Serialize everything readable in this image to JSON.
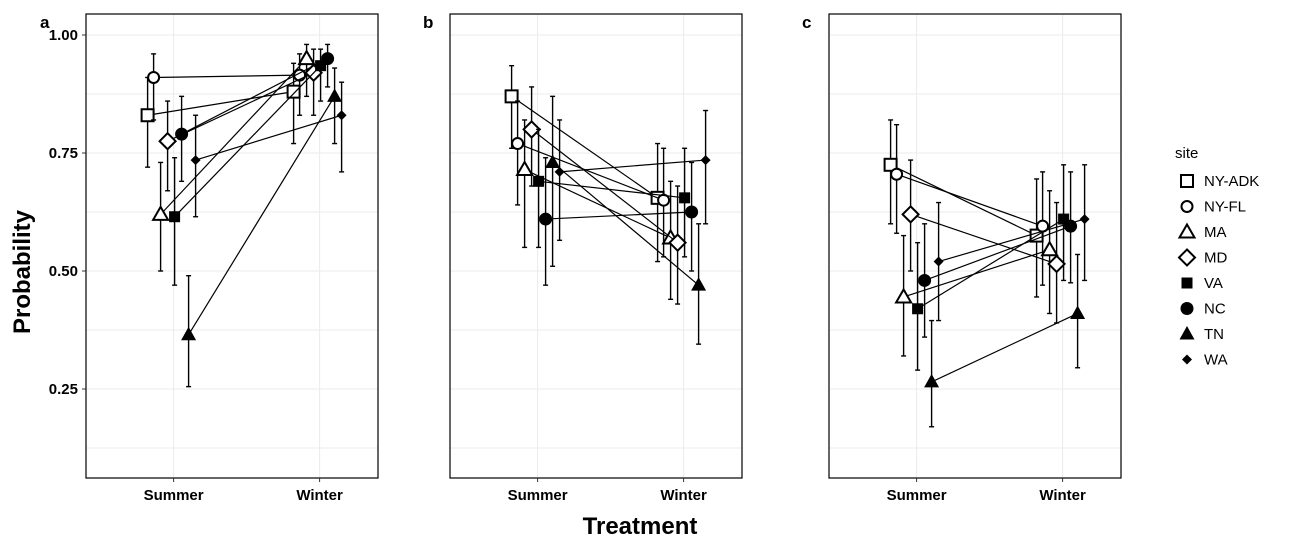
{
  "chart_data": {
    "type": "scatter",
    "xlabel": "Treatment",
    "ylabel": "Probability",
    "categories": [
      "Summer",
      "Winter"
    ],
    "ylim": [
      0.1,
      1.04
    ],
    "yticks": [
      {
        "value": 0.25,
        "label": "0.25"
      },
      {
        "value": 0.5,
        "label": "0.50"
      },
      {
        "value": 0.75,
        "label": "0.75"
      },
      {
        "value": 1.0,
        "label": "1.00"
      }
    ],
    "grid": true,
    "legend": {
      "title": "site",
      "position": "right",
      "entries": [
        {
          "site": "NY-ADK",
          "label": "NY-ADK",
          "marker": "square-open"
        },
        {
          "site": "NY-FL",
          "label": "NY-FL",
          "marker": "circle-open"
        },
        {
          "site": "MA",
          "label": "MA",
          "marker": "triangle-open"
        },
        {
          "site": "MD",
          "label": "MD",
          "marker": "diamond-open"
        },
        {
          "site": "VA",
          "label": "VA",
          "marker": "square-filled"
        },
        {
          "site": "NC",
          "label": "NC",
          "marker": "circle-filled"
        },
        {
          "site": "TN",
          "label": "TN",
          "marker": "triangle-filled"
        },
        {
          "site": "WA",
          "label": "WA",
          "marker": "diamond-filled-small"
        }
      ]
    },
    "panels": [
      {
        "letter": "a",
        "series": [
          {
            "site": "NY-ADK",
            "summer": {
              "y": 0.83,
              "lo": 0.72,
              "hi": 0.91
            },
            "winter": {
              "y": 0.88,
              "lo": 0.77,
              "hi": 0.94
            }
          },
          {
            "site": "NY-FL",
            "summer": {
              "y": 0.91,
              "lo": 0.82,
              "hi": 0.96
            },
            "winter": {
              "y": 0.915,
              "lo": 0.83,
              "hi": 0.96
            }
          },
          {
            "site": "MA",
            "summer": {
              "y": 0.62,
              "lo": 0.5,
              "hi": 0.73
            },
            "winter": {
              "y": 0.95,
              "lo": 0.87,
              "hi": 0.98
            }
          },
          {
            "site": "MD",
            "summer": {
              "y": 0.775,
              "lo": 0.67,
              "hi": 0.86
            },
            "winter": {
              "y": 0.92,
              "lo": 0.83,
              "hi": 0.97
            }
          },
          {
            "site": "VA",
            "summer": {
              "y": 0.615,
              "lo": 0.47,
              "hi": 0.74
            },
            "winter": {
              "y": 0.935,
              "lo": 0.86,
              "hi": 0.97
            }
          },
          {
            "site": "NC",
            "summer": {
              "y": 0.79,
              "lo": 0.69,
              "hi": 0.87
            },
            "winter": {
              "y": 0.95,
              "lo": 0.89,
              "hi": 0.98
            }
          },
          {
            "site": "TN",
            "summer": {
              "y": 0.365,
              "lo": 0.255,
              "hi": 0.49
            },
            "winter": {
              "y": 0.87,
              "lo": 0.77,
              "hi": 0.93
            }
          },
          {
            "site": "WA",
            "summer": {
              "y": 0.735,
              "lo": 0.615,
              "hi": 0.83
            },
            "winter": {
              "y": 0.83,
              "lo": 0.71,
              "hi": 0.9
            }
          }
        ]
      },
      {
        "letter": "b",
        "series": [
          {
            "site": "NY-ADK",
            "summer": {
              "y": 0.87,
              "lo": 0.76,
              "hi": 0.935
            },
            "winter": {
              "y": 0.655,
              "lo": 0.52,
              "hi": 0.77
            }
          },
          {
            "site": "NY-FL",
            "summer": {
              "y": 0.77,
              "lo": 0.64,
              "hi": 0.86
            },
            "winter": {
              "y": 0.65,
              "lo": 0.53,
              "hi": 0.76
            }
          },
          {
            "site": "MA",
            "summer": {
              "y": 0.715,
              "lo": 0.55,
              "hi": 0.82
            },
            "winter": {
              "y": 0.57,
              "lo": 0.44,
              "hi": 0.69
            }
          },
          {
            "site": "MD",
            "summer": {
              "y": 0.8,
              "lo": 0.68,
              "hi": 0.89
            },
            "winter": {
              "y": 0.56,
              "lo": 0.43,
              "hi": 0.68
            }
          },
          {
            "site": "VA",
            "summer": {
              "y": 0.69,
              "lo": 0.55,
              "hi": 0.8
            },
            "winter": {
              "y": 0.655,
              "lo": 0.53,
              "hi": 0.76
            }
          },
          {
            "site": "NC",
            "summer": {
              "y": 0.61,
              "lo": 0.47,
              "hi": 0.74
            },
            "winter": {
              "y": 0.625,
              "lo": 0.5,
              "hi": 0.73
            }
          },
          {
            "site": "TN",
            "summer": {
              "y": 0.73,
              "lo": 0.51,
              "hi": 0.87
            },
            "winter": {
              "y": 0.47,
              "lo": 0.345,
              "hi": 0.6
            }
          },
          {
            "site": "WA",
            "summer": {
              "y": 0.71,
              "lo": 0.565,
              "hi": 0.82
            },
            "winter": {
              "y": 0.735,
              "lo": 0.6,
              "hi": 0.84
            }
          }
        ]
      },
      {
        "letter": "c",
        "series": [
          {
            "site": "NY-ADK",
            "summer": {
              "y": 0.725,
              "lo": 0.6,
              "hi": 0.82
            },
            "winter": {
              "y": 0.575,
              "lo": 0.445,
              "hi": 0.695
            }
          },
          {
            "site": "NY-FL",
            "summer": {
              "y": 0.705,
              "lo": 0.58,
              "hi": 0.81
            },
            "winter": {
              "y": 0.595,
              "lo": 0.47,
              "hi": 0.71
            }
          },
          {
            "site": "MA",
            "summer": {
              "y": 0.445,
              "lo": 0.32,
              "hi": 0.575
            },
            "winter": {
              "y": 0.545,
              "lo": 0.41,
              "hi": 0.67
            }
          },
          {
            "site": "MD",
            "summer": {
              "y": 0.62,
              "lo": 0.5,
              "hi": 0.735
            },
            "winter": {
              "y": 0.515,
              "lo": 0.39,
              "hi": 0.645
            }
          },
          {
            "site": "VA",
            "summer": {
              "y": 0.42,
              "lo": 0.29,
              "hi": 0.56
            },
            "winter": {
              "y": 0.61,
              "lo": 0.48,
              "hi": 0.725
            }
          },
          {
            "site": "NC",
            "summer": {
              "y": 0.48,
              "lo": 0.36,
              "hi": 0.6
            },
            "winter": {
              "y": 0.595,
              "lo": 0.475,
              "hi": 0.71
            }
          },
          {
            "site": "TN",
            "summer": {
              "y": 0.265,
              "lo": 0.17,
              "hi": 0.395
            },
            "winter": {
              "y": 0.41,
              "lo": 0.295,
              "hi": 0.535
            }
          },
          {
            "site": "WA",
            "summer": {
              "y": 0.52,
              "lo": 0.395,
              "hi": 0.645
            },
            "winter": {
              "y": 0.61,
              "lo": 0.48,
              "hi": 0.725
            }
          }
        ]
      }
    ]
  }
}
